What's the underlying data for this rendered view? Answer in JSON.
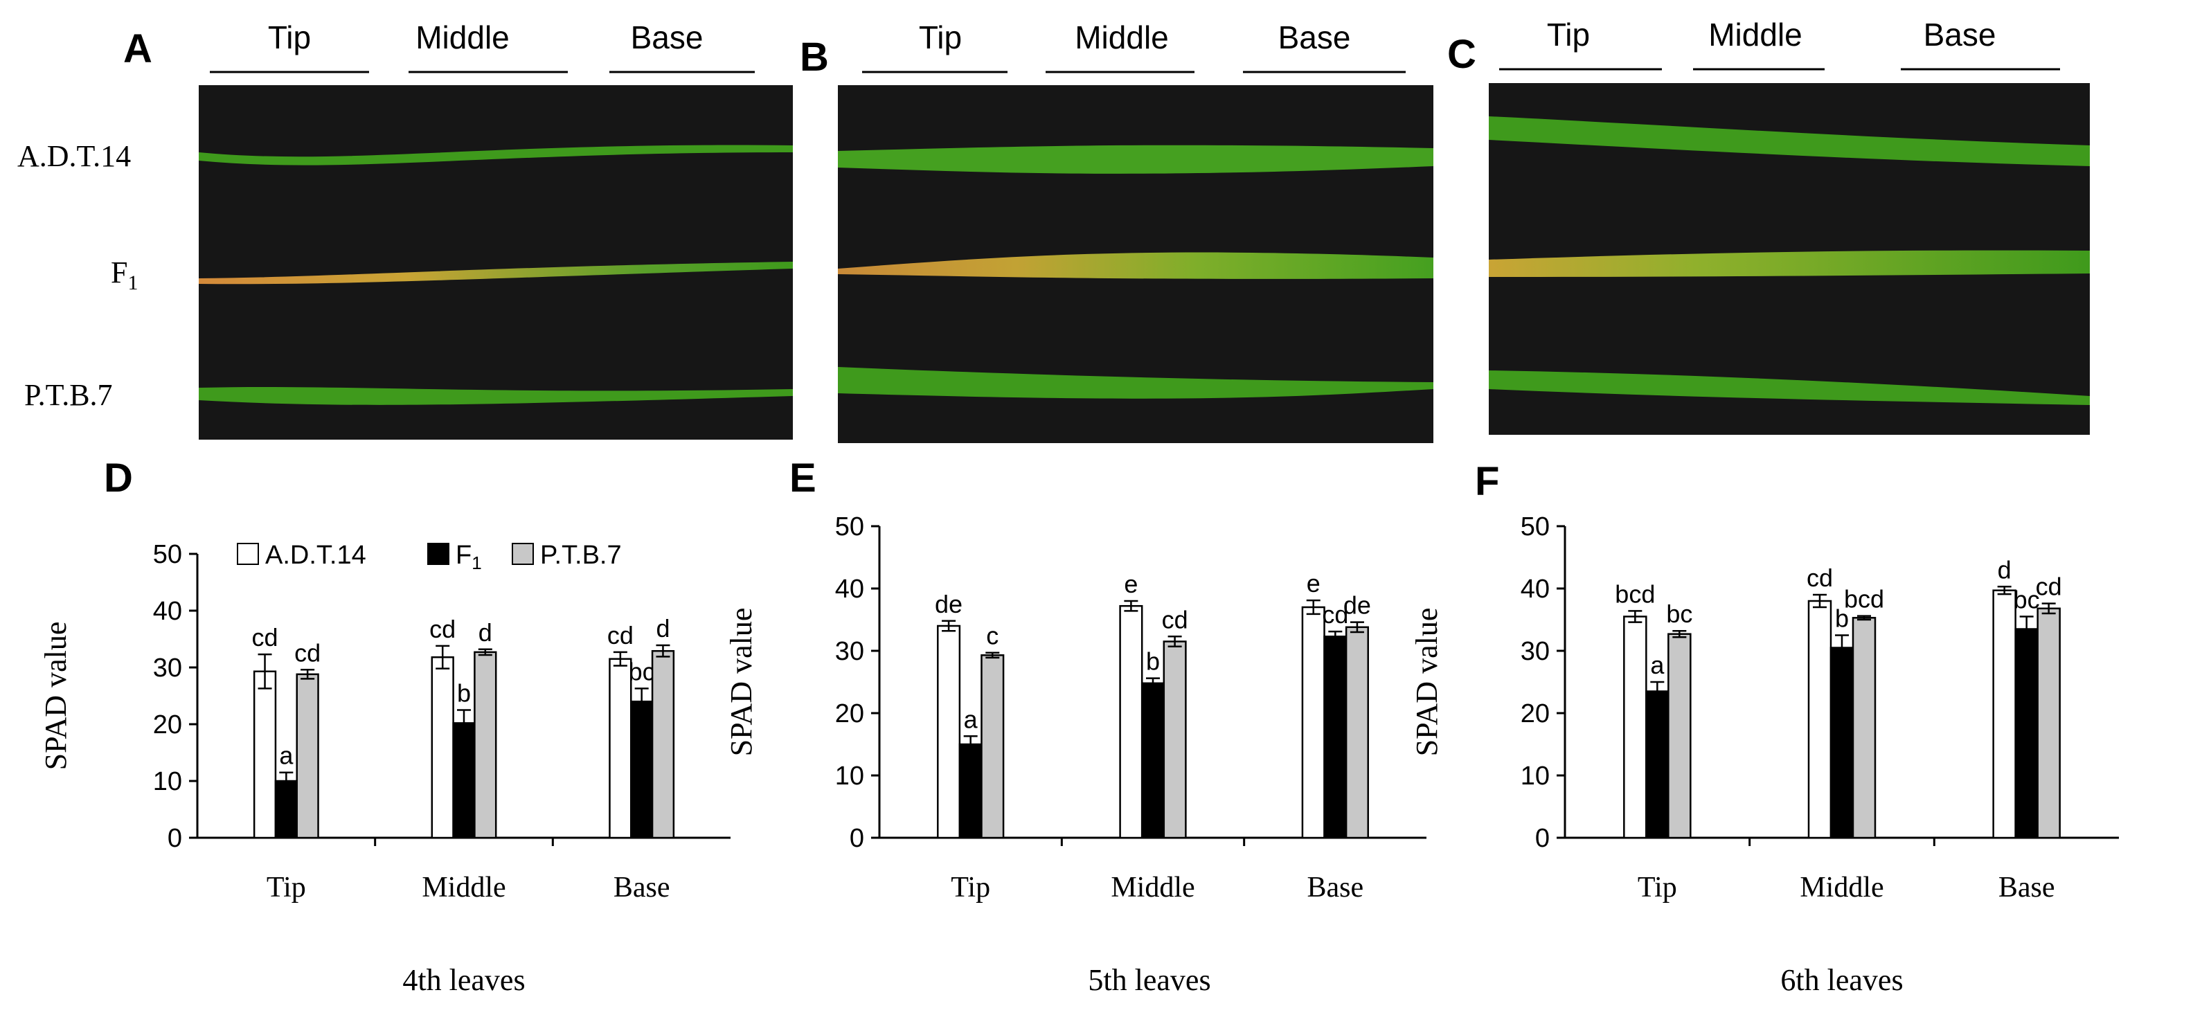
{
  "colors": {
    "a_dt14": "#ffffff",
    "f1": "#000000",
    "ptb7": "#c8c8c8",
    "photo_bg": "#161616",
    "leaf_green": "#3f9a1c",
    "leaf_yellow": "#c9a435"
  },
  "photo_panels": [
    {
      "letter": "A",
      "segments": [
        "Tip",
        "Middle",
        "Base"
      ],
      "row_labels": [
        "A.D.T.14",
        "F",
        "P.T.B.7"
      ],
      "row_label_sub": "1"
    },
    {
      "letter": "B",
      "segments": [
        "Tip",
        "Middle",
        "Base"
      ]
    },
    {
      "letter": "C",
      "segments": [
        "Tip",
        "Middle",
        "Base"
      ]
    }
  ],
  "legend": {
    "entries": [
      {
        "label": "A.D.T.14",
        "sub": ""
      },
      {
        "label": "F",
        "sub": "1"
      },
      {
        "label": "P.T.B.7",
        "sub": ""
      }
    ]
  },
  "chart_data": [
    {
      "letter": "D",
      "type": "bar",
      "xlabel": "4th leaves",
      "ylabel": "SPAD value",
      "ylim": [
        0,
        50
      ],
      "yticks": [
        0,
        10,
        20,
        30,
        40,
        50
      ],
      "categories": [
        "Tip",
        "Middle",
        "Base"
      ],
      "series": [
        {
          "name": "A.D.T.14",
          "values": [
            29.3,
            31.8,
            31.5
          ],
          "errors": [
            3.0,
            2.0,
            1.2
          ],
          "letters": [
            "cd",
            "cd",
            "cd"
          ]
        },
        {
          "name": "F1",
          "values": [
            10.0,
            20.2,
            24.0
          ],
          "errors": [
            1.5,
            2.3,
            2.3
          ],
          "letters": [
            "a",
            "b",
            "bc"
          ]
        },
        {
          "name": "P.T.B.7",
          "values": [
            28.8,
            32.7,
            32.9
          ],
          "errors": [
            0.8,
            0.5,
            1.0
          ],
          "letters": [
            "cd",
            "d",
            "d"
          ]
        }
      ]
    },
    {
      "letter": "E",
      "type": "bar",
      "xlabel": "5th leaves",
      "ylabel": "SPAD value",
      "ylim": [
        0,
        50
      ],
      "yticks": [
        0,
        10,
        20,
        30,
        40,
        50
      ],
      "categories": [
        "Tip",
        "Middle",
        "Base"
      ],
      "series": [
        {
          "name": "A.D.T.14",
          "values": [
            34.0,
            37.2,
            37.0
          ],
          "errors": [
            0.8,
            0.8,
            1.1
          ],
          "letters": [
            "de",
            "e",
            "e"
          ]
        },
        {
          "name": "F1",
          "values": [
            15.0,
            24.8,
            32.3
          ],
          "errors": [
            1.3,
            0.8,
            0.8
          ],
          "letters": [
            "a",
            "b",
            "cd"
          ]
        },
        {
          "name": "P.T.B.7",
          "values": [
            29.3,
            31.5,
            33.8
          ],
          "errors": [
            0.4,
            0.8,
            0.8
          ],
          "letters": [
            "c",
            "cd",
            "de"
          ]
        }
      ]
    },
    {
      "letter": "F",
      "type": "bar",
      "xlabel": "6th leaves",
      "ylabel": "SPAD value",
      "ylim": [
        0,
        50
      ],
      "yticks": [
        0,
        10,
        20,
        30,
        40,
        50
      ],
      "categories": [
        "Tip",
        "Middle",
        "Base"
      ],
      "series": [
        {
          "name": "A.D.T.14",
          "values": [
            35.5,
            38.0,
            39.7
          ],
          "errors": [
            0.9,
            1.0,
            0.6
          ],
          "letters": [
            "bcd",
            "cd",
            "d"
          ]
        },
        {
          "name": "F1",
          "values": [
            23.5,
            30.5,
            33.5
          ],
          "errors": [
            1.5,
            2.0,
            2.0
          ],
          "letters": [
            "a",
            "b",
            "bc"
          ]
        },
        {
          "name": "P.T.B.7",
          "values": [
            32.7,
            35.3,
            36.8
          ],
          "errors": [
            0.5,
            0.3,
            0.8
          ],
          "letters": [
            "bc",
            "bcd",
            "cd"
          ]
        }
      ]
    }
  ]
}
